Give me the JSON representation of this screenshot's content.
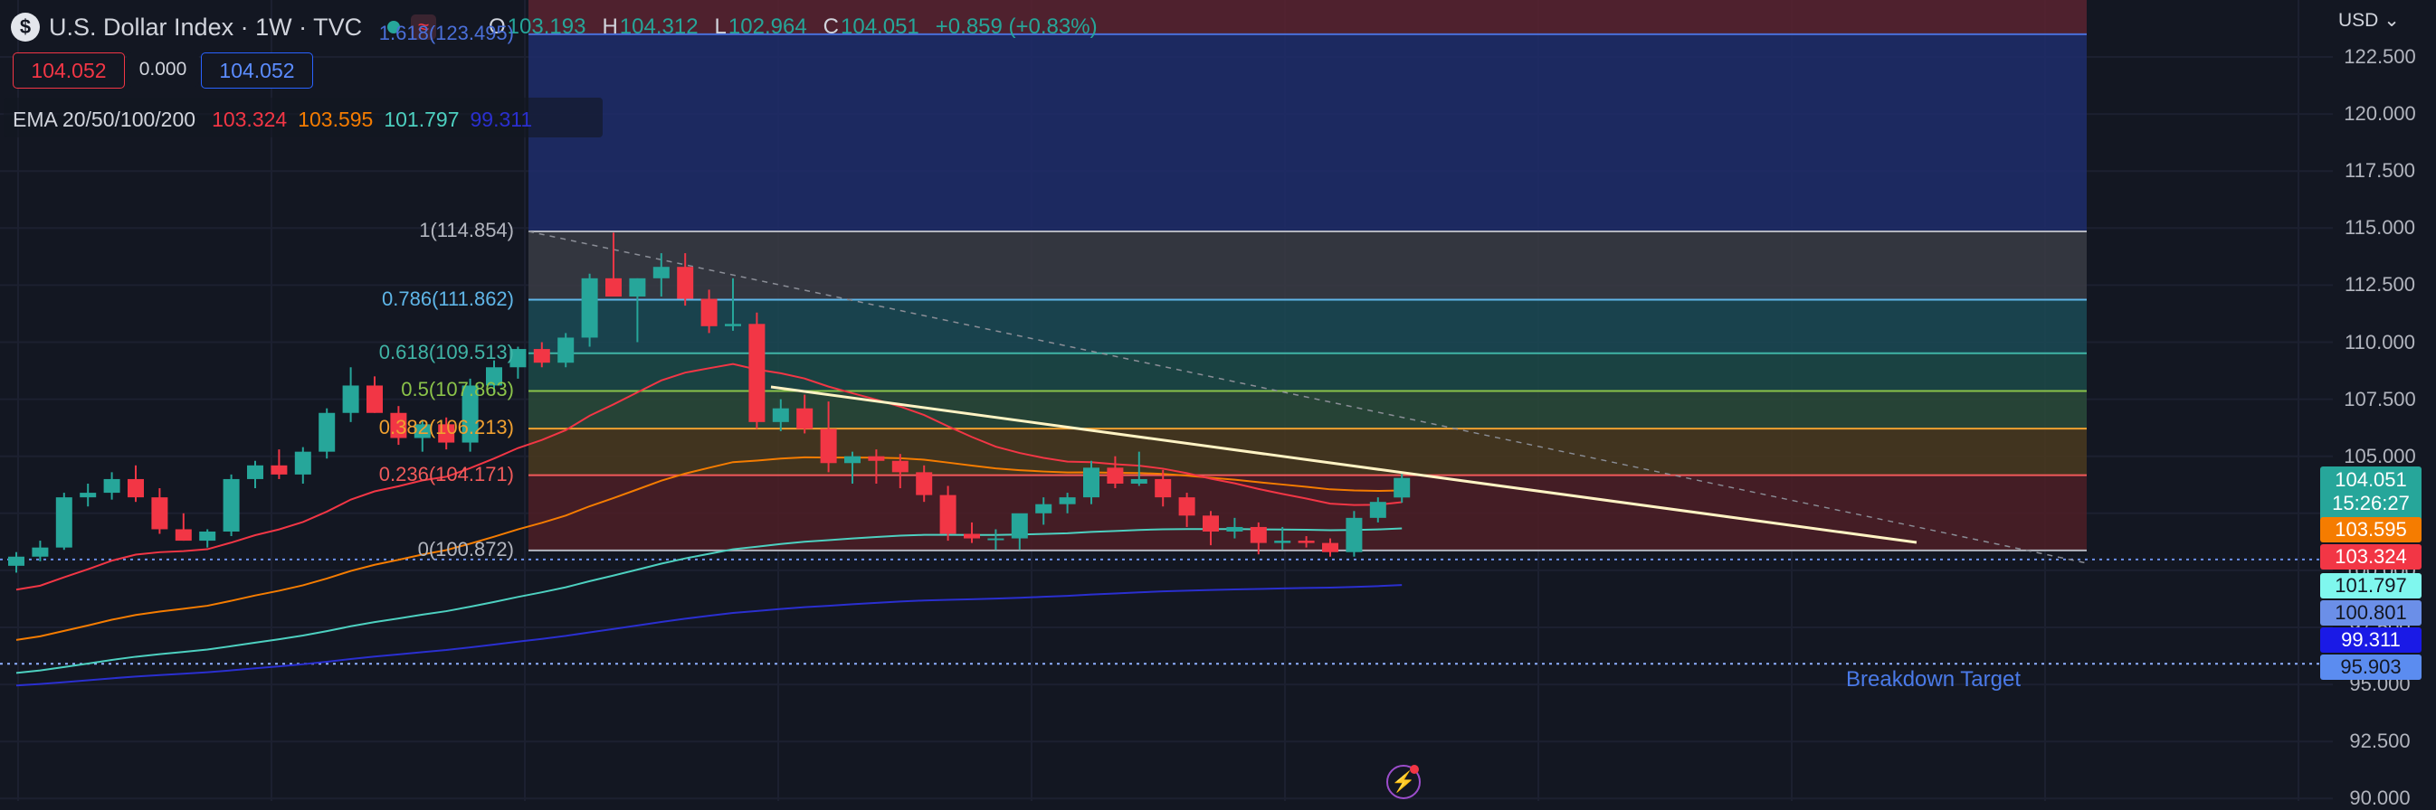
{
  "header": {
    "symbol_icon": "$",
    "title": "U.S. Dollar Index · 1W · TVC",
    "wave_icon": "≈",
    "ohlc": {
      "o_label": "O",
      "o": "103.193",
      "h_label": "H",
      "h": "104.312",
      "l_label": "L",
      "l": "102.964",
      "c_label": "C",
      "c": "104.051",
      "change": "+0.859 (+0.83%)"
    },
    "sell_price": "104.052",
    "spread": "0.000",
    "buy_price": "104.052",
    "ema": {
      "label": "EMA 20/50/100/200",
      "v20": "103.324",
      "v50": "103.595",
      "v100": "101.797",
      "v200": "99.311"
    }
  },
  "colors": {
    "bg": "#131722",
    "up": "#26a69a",
    "down": "#f23645",
    "ema20": "#f23645",
    "ema50": "#f57c00",
    "ema100": "#4dd0c0",
    "ema200": "#2a2fcf",
    "trend": "#fff3c4"
  },
  "chart_data": {
    "type": "candlestick",
    "currency": "USD",
    "y_axis_ticks": [
      "122.500",
      "120.000",
      "117.500",
      "115.000",
      "112.500",
      "110.000",
      "107.500",
      "105.000",
      "102.500",
      "100.000",
      "97.500",
      "95.000",
      "92.500",
      "90.000"
    ],
    "ylim": [
      90.0,
      124.0
    ],
    "fib_levels": [
      {
        "ratio": "1.618",
        "price": "123.495",
        "label": "1.618(123.495)",
        "color": "#4a6fd8"
      },
      {
        "ratio": "1",
        "price": "114.854",
        "label": "1(114.854)",
        "color": "#b2b5be"
      },
      {
        "ratio": "0.786",
        "price": "111.862",
        "label": "0.786(111.862)",
        "color": "#5fb6e8"
      },
      {
        "ratio": "0.618",
        "price": "109.513",
        "label": "0.618(109.513)",
        "color": "#40b4a6"
      },
      {
        "ratio": "0.5",
        "price": "107.863",
        "label": "0.5(107.863)",
        "color": "#8bc34a"
      },
      {
        "ratio": "0.382",
        "price": "106.213",
        "label": "0.382(106.213)",
        "color": "#f0a030"
      },
      {
        "ratio": "0.236",
        "price": "104.171",
        "label": "0.236(104.171)",
        "color": "#f05a5a"
      },
      {
        "ratio": "0",
        "price": "100.872",
        "label": "0(100.872)",
        "color": "#b2b5be"
      }
    ],
    "candles": [
      [
        100.2,
        100.8,
        99.9,
        100.6
      ],
      [
        100.6,
        101.3,
        100.4,
        101.0
      ],
      [
        101.0,
        103.4,
        100.9,
        103.2
      ],
      [
        103.2,
        103.8,
        102.8,
        103.4
      ],
      [
        103.4,
        104.3,
        103.1,
        104.0
      ],
      [
        104.0,
        104.6,
        103.0,
        103.2
      ],
      [
        103.2,
        103.6,
        101.6,
        101.8
      ],
      [
        101.8,
        102.5,
        101.3,
        101.3
      ],
      [
        101.3,
        101.8,
        101.0,
        101.7
      ],
      [
        101.7,
        104.2,
        101.5,
        104.0
      ],
      [
        104.0,
        104.8,
        103.6,
        104.6
      ],
      [
        104.6,
        105.3,
        104.0,
        104.2
      ],
      [
        104.2,
        105.4,
        103.8,
        105.2
      ],
      [
        105.2,
        107.1,
        104.9,
        106.9
      ],
      [
        106.9,
        108.9,
        106.5,
        108.1
      ],
      [
        108.1,
        108.5,
        106.9,
        106.9
      ],
      [
        106.9,
        107.2,
        105.5,
        105.8
      ],
      [
        105.8,
        106.6,
        105.2,
        106.4
      ],
      [
        106.4,
        106.7,
        105.3,
        105.6
      ],
      [
        105.6,
        108.4,
        105.2,
        108.1
      ],
      [
        108.1,
        109.2,
        107.8,
        108.9
      ],
      [
        108.9,
        109.8,
        108.4,
        109.7
      ],
      [
        109.7,
        110.0,
        108.9,
        109.1
      ],
      [
        109.1,
        110.4,
        108.9,
        110.2
      ],
      [
        110.2,
        113.0,
        109.8,
        112.8
      ],
      [
        112.8,
        114.8,
        112.1,
        112.0
      ],
      [
        112.0,
        112.8,
        110.0,
        112.8
      ],
      [
        112.8,
        113.9,
        112.0,
        113.3
      ],
      [
        113.3,
        113.9,
        111.6,
        111.9
      ],
      [
        111.9,
        112.3,
        110.4,
        110.7
      ],
      [
        110.7,
        112.8,
        110.5,
        110.8
      ],
      [
        110.8,
        111.3,
        106.2,
        106.5
      ],
      [
        106.5,
        107.5,
        106.1,
        107.1
      ],
      [
        107.1,
        107.7,
        106.0,
        106.2
      ],
      [
        106.2,
        107.4,
        104.3,
        104.7
      ],
      [
        104.7,
        105.2,
        103.8,
        105.0
      ],
      [
        105.0,
        105.3,
        103.8,
        104.8
      ],
      [
        104.8,
        105.1,
        103.6,
        104.3
      ],
      [
        104.3,
        104.6,
        103.0,
        103.3
      ],
      [
        103.3,
        103.7,
        101.3,
        101.6
      ],
      [
        101.6,
        102.1,
        101.2,
        101.4
      ],
      [
        101.4,
        101.8,
        100.9,
        101.4
      ],
      [
        101.4,
        102.3,
        100.9,
        102.5
      ],
      [
        102.5,
        103.2,
        102.0,
        102.9
      ],
      [
        102.9,
        103.4,
        102.5,
        103.2
      ],
      [
        103.2,
        104.8,
        102.9,
        104.5
      ],
      [
        104.5,
        105.0,
        103.6,
        103.8
      ],
      [
        103.8,
        105.2,
        103.7,
        104.0
      ],
      [
        104.0,
        104.4,
        102.8,
        103.2
      ],
      [
        103.2,
        103.4,
        101.9,
        102.4
      ],
      [
        102.4,
        102.6,
        101.1,
        101.7
      ],
      [
        101.7,
        102.3,
        101.4,
        101.9
      ],
      [
        101.9,
        102.1,
        100.7,
        101.2
      ],
      [
        101.2,
        101.9,
        100.9,
        101.3
      ],
      [
        101.3,
        101.5,
        101.0,
        101.2
      ],
      [
        101.2,
        101.4,
        100.6,
        100.8
      ],
      [
        100.8,
        102.6,
        100.6,
        102.3
      ],
      [
        102.3,
        103.2,
        102.1,
        103.0
      ],
      [
        103.193,
        104.312,
        102.964,
        104.051
      ]
    ],
    "ema20_end": "103.324",
    "ema50_end": "103.595",
    "ema100_end": "101.797",
    "ema200_end": "99.311",
    "current_price": "104.051",
    "countdown": "15:26:27",
    "extra_tags": [
      "100.801",
      "95.903"
    ],
    "annotation": "Breakdown Target"
  },
  "footer": {
    "flash_icon": "⚡"
  }
}
